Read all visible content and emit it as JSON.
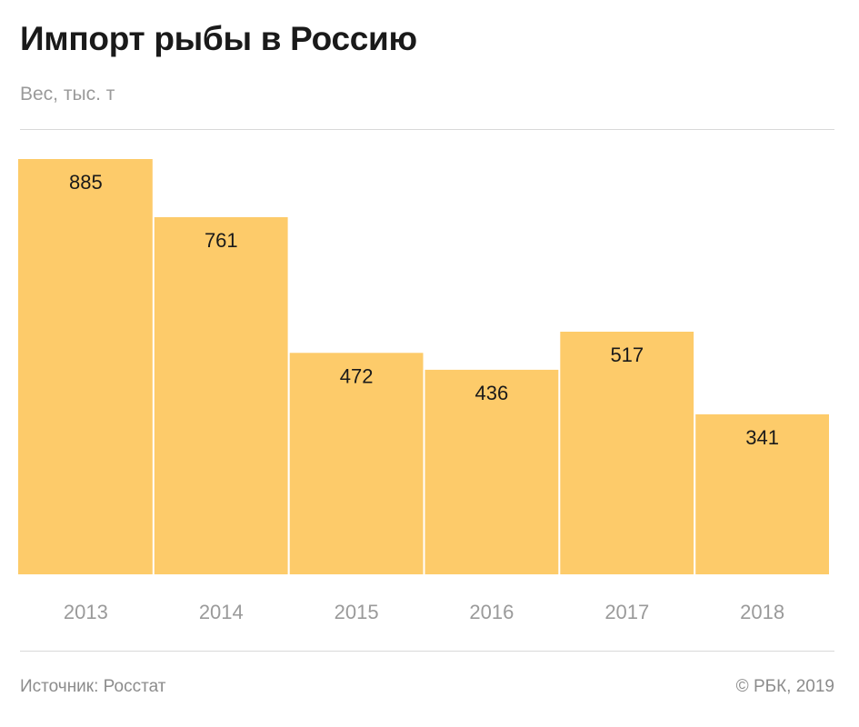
{
  "header": {
    "title": "Импорт рыбы в Россию",
    "subtitle": "Вес, тыс. т"
  },
  "footer": {
    "source": "Источник: Росстат",
    "copyright": "© РБК, 2019"
  },
  "colors": {
    "bar": "#fdcb6a",
    "value_label": "#1a1a1a",
    "tick_label": "#9a9a9a"
  },
  "chart_data": {
    "type": "bar",
    "categories": [
      "2013",
      "2014",
      "2015",
      "2016",
      "2017",
      "2018"
    ],
    "values": [
      885,
      761,
      472,
      436,
      517,
      341
    ],
    "title": "Импорт рыбы в Россию",
    "ylabel": "Вес, тыс. т",
    "xlabel": "",
    "ylim": [
      0,
      885
    ],
    "grid": false,
    "legend": "none",
    "data_labels": true
  }
}
